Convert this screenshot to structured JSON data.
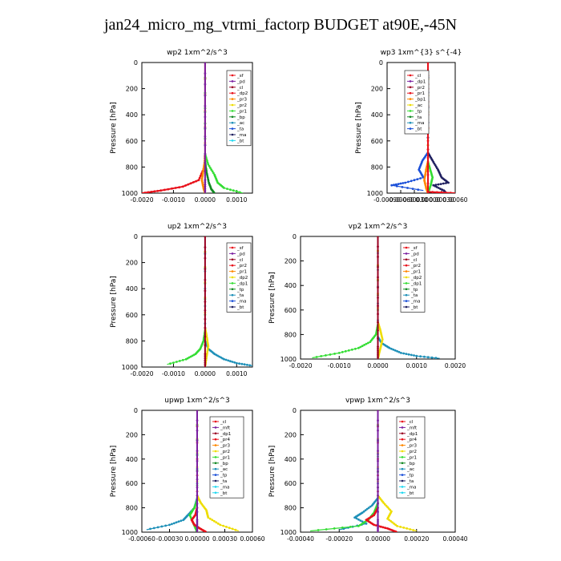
{
  "title": "jan24_micro_mg_vtrmi_factorp  BUDGET at90E,-45N",
  "colors": {
    "red": "#e8101a",
    "darkred": "#990022",
    "purple": "#7a1fa0",
    "orange": "#ff8800",
    "yellow": "#eedd00",
    "green": "#33dd33",
    "darkgreen": "#118822",
    "blue": "#1a4fd8",
    "teal": "#1e90b8",
    "navy": "#202060",
    "cyan": "#20d8f0"
  },
  "chart_data": [
    {
      "type": "line",
      "title": "wp2  1xm^2/s^3",
      "ylabel": "Pressure [hPa]",
      "xlim": [
        -0.002,
        0.0015
      ],
      "ylim": [
        1000,
        0
      ],
      "xticks": [
        -0.002,
        -0.001,
        0,
        0.001
      ],
      "xtick_labels": [
        "-0.0020",
        "-0.0010",
        "0.0000",
        "0.0010"
      ],
      "yticks": [
        0,
        200,
        400,
        600,
        800,
        1000
      ],
      "legend": [
        "_sf",
        "_pd",
        "_cl",
        "_dp2",
        "_pr3",
        "_pr2",
        "_pr1",
        "_bp",
        "_ac",
        "_ta",
        "_ma",
        "_bt"
      ],
      "series": [
        {
          "color": "red",
          "x": [
            0,
            0,
            -2e-05,
            -0.0002,
            -0.0007,
            -0.0014,
            -0.002
          ],
          "y": [
            0,
            700,
            800,
            900,
            950,
            980,
            1000
          ]
        },
        {
          "color": "green",
          "x": [
            0,
            0,
            0.0001,
            0.0003,
            0.0004,
            0.0006,
            0.0012
          ],
          "y": [
            0,
            700,
            780,
            860,
            920,
            960,
            1000
          ]
        },
        {
          "color": "darkgreen",
          "x": [
            0,
            0,
            5e-05,
            0.00012,
            0.0002,
            0.0003
          ],
          "y": [
            0,
            760,
            840,
            920,
            970,
            1000
          ]
        },
        {
          "color": "orange",
          "x": [
            0,
            0,
            -5e-05,
            -0.0001,
            -5e-05,
            0
          ],
          "y": [
            0,
            740,
            820,
            900,
            960,
            1000
          ]
        },
        {
          "color": "purple",
          "x": [
            0,
            0,
            0,
            0
          ],
          "y": [
            0,
            500,
            900,
            1000
          ]
        }
      ]
    },
    {
      "type": "line",
      "title": "wp3  1xm^{3} s^{-4}",
      "ylabel": "Pressure [hPa]",
      "xlim": [
        -0.0009,
        0.0006
      ],
      "ylim": [
        1000,
        0
      ],
      "xticks": [
        -0.0009,
        -0.0006,
        -0.0003,
        0,
        0.0003,
        0.0006
      ],
      "xtick_labels": [
        "-0.00090",
        "-0.00060",
        "-0.00030",
        "0.00000",
        "0.00030",
        "0.00060"
      ],
      "yticks": [
        0,
        200,
        400,
        600,
        800,
        1000
      ],
      "legend": [
        "_cl",
        "_dp1",
        "_pr2",
        "_pr1",
        "_bp1",
        "_ac",
        "_tp",
        "_ta",
        "_ma",
        "_bt"
      ],
      "series": [
        {
          "color": "blue",
          "x": [
            0,
            0,
            -0.00012,
            -0.0002,
            -0.0001,
            -0.0005,
            -0.0008,
            -0.0001
          ],
          "y": [
            0,
            690,
            750,
            820,
            880,
            920,
            940,
            980
          ]
        },
        {
          "color": "navy",
          "x": [
            0,
            0,
            0.0001,
            0.00022,
            0.0003,
            0.00045,
            0.00012,
            0.00035,
            0.0004
          ],
          "y": [
            0,
            690,
            750,
            820,
            880,
            920,
            940,
            980,
            1000
          ]
        },
        {
          "color": "green",
          "x": [
            0,
            0,
            5e-05,
            0.0001,
            6e-05,
            0
          ],
          "y": [
            0,
            760,
            820,
            880,
            940,
            1000
          ]
        },
        {
          "color": "orange",
          "x": [
            0,
            0,
            -4e-05,
            -8e-05,
            -4e-05,
            0
          ],
          "y": [
            0,
            760,
            820,
            900,
            960,
            1000
          ]
        },
        {
          "color": "red",
          "x": [
            0,
            0,
            0,
            0.0006
          ],
          "y": [
            0,
            600,
            990,
            1000
          ]
        },
        {
          "color": "red",
          "x": [
            0,
            0
          ],
          "y": [
            0,
            1000
          ]
        }
      ]
    },
    {
      "type": "line",
      "title": "up2  1xm^2/s^3",
      "ylabel": "Pressure [hPa]",
      "xlim": [
        -0.002,
        0.0015
      ],
      "ylim": [
        1000,
        0
      ],
      "xticks": [
        -0.002,
        -0.001,
        0,
        0.001
      ],
      "xtick_labels": [
        "-0.0020",
        "-0.0010",
        "0.0000",
        "0.0010"
      ],
      "yticks": [
        0,
        200,
        400,
        600,
        800,
        1000
      ],
      "legend": [
        "_sf",
        "_pd",
        "_cl",
        "_pr2",
        "_pr1",
        "_dp2",
        "_dp1",
        "_tp",
        "_ta",
        "_ma",
        "_bt"
      ],
      "series": [
        {
          "color": "green",
          "x": [
            0,
            0,
            -5e-05,
            -0.00015,
            -0.0003,
            -0.0006,
            -0.0012
          ],
          "y": [
            0,
            720,
            800,
            860,
            900,
            940,
            980
          ]
        },
        {
          "color": "teal",
          "x": [
            0,
            0,
            0.0001,
            0.0003,
            0.0006,
            0.001,
            0.0015
          ],
          "y": [
            0,
            800,
            860,
            900,
            940,
            970,
            990
          ]
        },
        {
          "color": "yellow",
          "x": [
            0,
            0,
            5e-05,
            0.0001,
            5e-05,
            0
          ],
          "y": [
            0,
            700,
            760,
            840,
            920,
            1000
          ]
        },
        {
          "color": "darkred",
          "x": [
            0,
            0,
            0,
            0
          ],
          "y": [
            0,
            500,
            900,
            1000
          ]
        }
      ]
    },
    {
      "type": "line",
      "title": "vp2  1xm^2/s^3",
      "ylabel": "Pressure [hPa]",
      "xlim": [
        -0.002,
        0.002
      ],
      "ylim": [
        1000,
        0
      ],
      "xticks": [
        -0.002,
        -0.001,
        0,
        0.001,
        0.002
      ],
      "xtick_labels": [
        "-0.0020",
        "-0.0010",
        "0.0000",
        "0.0010",
        "0.0020"
      ],
      "yticks": [
        0,
        200,
        400,
        600,
        800,
        1000
      ],
      "legend": [
        "_sf",
        "_pd",
        "_cl",
        "_pr2",
        "_pr1",
        "_dp2",
        "_dp1",
        "_tp",
        "_ta",
        "_ma",
        "_bt"
      ],
      "series": [
        {
          "color": "green",
          "x": [
            0,
            0,
            -5e-05,
            -0.0002,
            -0.0005,
            -0.001,
            -0.0017
          ],
          "y": [
            0,
            720,
            800,
            860,
            910,
            950,
            990
          ]
        },
        {
          "color": "teal",
          "x": [
            0,
            0,
            0.0001,
            0.0003,
            0.0006,
            0.001,
            0.0016
          ],
          "y": [
            0,
            820,
            870,
            910,
            950,
            975,
            995
          ]
        },
        {
          "color": "yellow",
          "x": [
            0,
            0,
            6e-05,
            0.00012,
            6e-05,
            0
          ],
          "y": [
            0,
            700,
            760,
            840,
            920,
            1000
          ]
        },
        {
          "color": "darkred",
          "x": [
            0,
            0,
            0,
            0
          ],
          "y": [
            0,
            500,
            900,
            1000
          ]
        }
      ]
    },
    {
      "type": "line",
      "title": "upwp  1xm^2/s^3",
      "ylabel": "Pressure [hPa]",
      "xlim": [
        -0.0006,
        0.0006
      ],
      "ylim": [
        1000,
        0
      ],
      "xticks": [
        -0.0006,
        -0.0003,
        0,
        0.0003,
        0.0006
      ],
      "xtick_labels": [
        "-0.00060",
        "-0.00030",
        "0.00000",
        "0.00030",
        "0.00060"
      ],
      "yticks": [
        0,
        200,
        400,
        600,
        800,
        1000
      ],
      "legend": [
        "_cl",
        "_mft",
        "_dp1",
        "_pr4",
        "_pr3",
        "_pr2",
        "_pr1",
        "_bp",
        "_ac",
        "_tp",
        "_ta",
        "_ma",
        "_bt"
      ],
      "series": [
        {
          "color": "teal",
          "x": [
            0,
            0,
            -3e-05,
            -0.0001,
            -0.00015,
            -0.0003,
            -0.00055
          ],
          "y": [
            0,
            720,
            800,
            860,
            900,
            940,
            980
          ]
        },
        {
          "color": "yellow",
          "x": [
            0,
            0,
            4e-05,
            0.0001,
            0.00012,
            0.00025,
            0.00045
          ],
          "y": [
            0,
            700,
            760,
            820,
            880,
            940,
            990
          ]
        },
        {
          "color": "green",
          "x": [
            0,
            0,
            -3e-05,
            -8e-05,
            -4e-05,
            0
          ],
          "y": [
            0,
            740,
            800,
            860,
            930,
            1000
          ]
        },
        {
          "color": "red",
          "x": [
            0,
            0,
            -2e-05,
            -6e-05,
            -3e-05,
            3e-05,
            0.0001
          ],
          "y": [
            0,
            800,
            860,
            900,
            940,
            970,
            1000
          ]
        },
        {
          "color": "purple",
          "x": [
            0,
            0,
            0,
            0
          ],
          "y": [
            0,
            500,
            900,
            1000
          ]
        }
      ]
    },
    {
      "type": "line",
      "title": "vpwp  1xm^2/s^3",
      "ylabel": "Pressure [hPa]",
      "xlim": [
        -0.0004,
        0.0004
      ],
      "ylim": [
        1000,
        0
      ],
      "xticks": [
        -0.0004,
        -0.0002,
        0,
        0.0002,
        0.0004
      ],
      "xtick_labels": [
        "-0.00040",
        "-0.00020",
        "0.00000",
        "0.00020",
        "0.00040"
      ],
      "yticks": [
        0,
        200,
        400,
        600,
        800,
        1000
      ],
      "legend": [
        "_cl",
        "_mft",
        "_dp1",
        "_pr4",
        "_pr3",
        "_pr2",
        "_pr1",
        "_bp",
        "_ac",
        "_tp",
        "_ta",
        "_ma",
        "_bt"
      ],
      "series": [
        {
          "color": "teal",
          "x": [
            0,
            0,
            -3e-05,
            -8e-05,
            -0.00012,
            -6e-05,
            -0.0002
          ],
          "y": [
            0,
            720,
            780,
            840,
            880,
            930,
            980
          ]
        },
        {
          "color": "yellow",
          "x": [
            0,
            0,
            3e-05,
            7e-05,
            5e-05,
            0.0001,
            0.0002
          ],
          "y": [
            0,
            700,
            760,
            830,
            890,
            950,
            990
          ]
        },
        {
          "color": "green",
          "x": [
            0,
            0,
            -2e-05,
            -5e-05,
            -0.0001,
            -0.00035
          ],
          "y": [
            0,
            760,
            840,
            900,
            950,
            990
          ]
        },
        {
          "color": "red",
          "x": [
            0,
            0,
            -2e-05,
            -6e-05,
            -2e-05,
            5e-05,
            0.0001
          ],
          "y": [
            0,
            800,
            860,
            900,
            940,
            970,
            1000
          ]
        },
        {
          "color": "purple",
          "x": [
            0,
            0,
            0,
            0
          ],
          "y": [
            0,
            500,
            900,
            1000
          ]
        }
      ]
    }
  ]
}
